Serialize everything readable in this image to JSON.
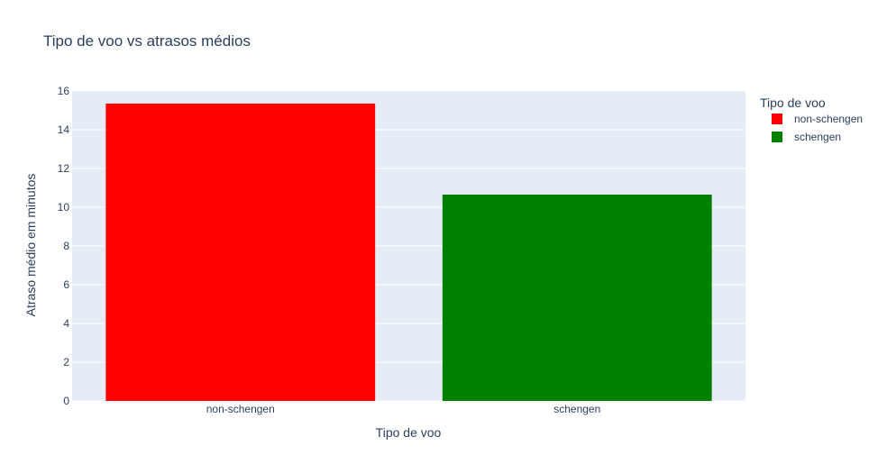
{
  "chart_data": {
    "type": "bar",
    "title": "Tipo de voo vs atrasos médios",
    "xlabel": "Tipo de voo",
    "ylabel": "Atraso médio em minutos",
    "categories": [
      "non-schengen",
      "schengen"
    ],
    "values": [
      15.35,
      10.65
    ],
    "colors": [
      "#ff0000",
      "#008000"
    ],
    "ylim": [
      0,
      16
    ],
    "yticks": [
      0,
      2,
      4,
      6,
      8,
      10,
      12,
      14,
      16
    ],
    "grid": true,
    "legend": {
      "title": "Tipo de voo",
      "placement": "top-right",
      "entries": [
        "non-schengen",
        "schengen"
      ]
    },
    "plot_bgcolor": "#e5ecf6",
    "grid_color": "#ffffff",
    "text_color": "#2a3f5f"
  }
}
